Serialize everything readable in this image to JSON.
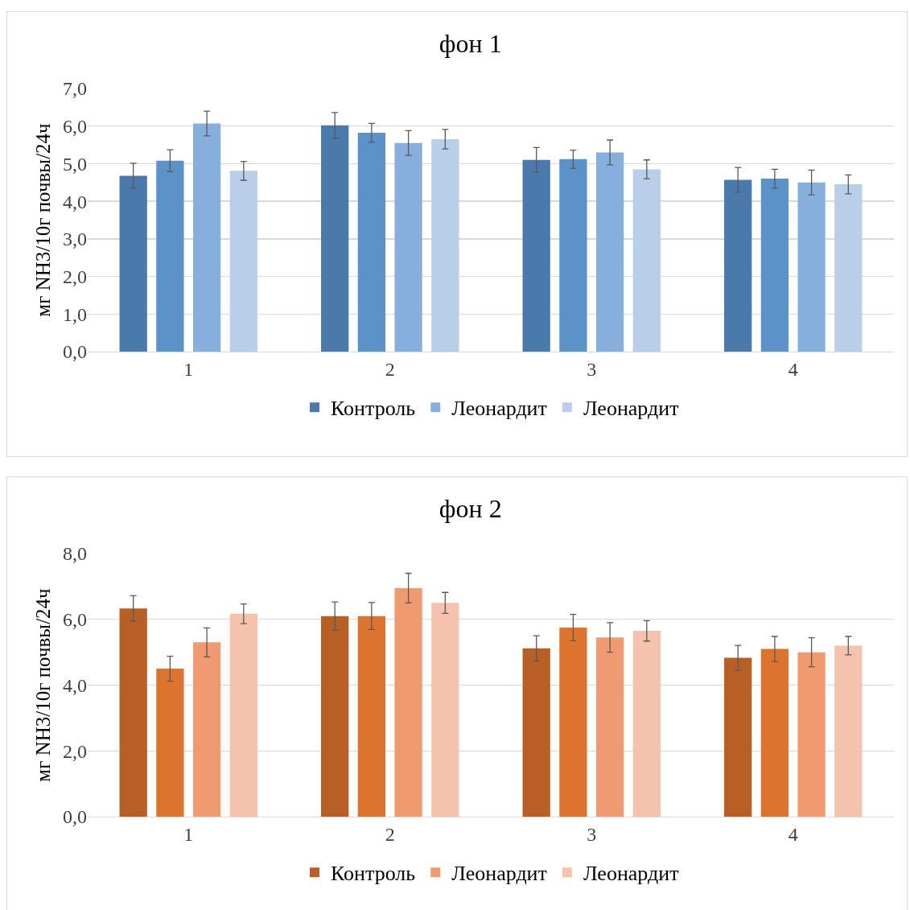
{
  "chart_data": [
    {
      "type": "bar",
      "title": "фон 1",
      "ylabel": "мг NH3/10г почвы/24ч",
      "categories": [
        "1",
        "2",
        "3",
        "4"
      ],
      "ylim": [
        0,
        7
      ],
      "yticks": [
        {
          "value": 0,
          "label": "0,0"
        },
        {
          "value": 1,
          "label": "1,0"
        },
        {
          "value": 2,
          "label": "2,0"
        },
        {
          "value": 3,
          "label": "3,0"
        },
        {
          "value": 4,
          "label": "4,0"
        },
        {
          "value": 5,
          "label": "5,0"
        },
        {
          "value": 6,
          "label": "6,0"
        },
        {
          "value": 7,
          "label": "7,0"
        }
      ],
      "grid": "y",
      "legend": "bottom",
      "series": [
        {
          "name": "Контроль",
          "color": "#4a7aab",
          "values": [
            4.68,
            6.02,
            5.1,
            4.57
          ],
          "errors": [
            0.33,
            0.34,
            0.33,
            0.33
          ]
        },
        {
          "color": "#5b93c9",
          "values": [
            5.08,
            5.82,
            5.12,
            4.6
          ],
          "errors": [
            0.29,
            0.25,
            0.24,
            0.25
          ]
        },
        {
          "name": "Леонардит",
          "color": "#86afdd",
          "values": [
            6.07,
            5.55,
            5.3,
            4.5
          ],
          "errors": [
            0.33,
            0.33,
            0.33,
            0.33
          ]
        },
        {
          "name": "Леонардит",
          "color": "#b9cfe9",
          "values": [
            4.81,
            5.65,
            4.85,
            4.45
          ],
          "errors": [
            0.25,
            0.26,
            0.25,
            0.25
          ]
        }
      ]
    },
    {
      "type": "bar",
      "title": "фон 2",
      "ylabel": "мг NH3/10г почвы/24ч",
      "categories": [
        "1",
        "2",
        "3",
        "4"
      ],
      "ylim": [
        0,
        8
      ],
      "yticks": [
        {
          "value": 0,
          "label": "0,0"
        },
        {
          "value": 2,
          "label": "2,0"
        },
        {
          "value": 4,
          "label": "4,0"
        },
        {
          "value": 6,
          "label": "6,0"
        },
        {
          "value": 8,
          "label": "8,0"
        }
      ],
      "grid": "y",
      "legend": "bottom",
      "series": [
        {
          "name": "Контроль",
          "color": "#b85f25",
          "values": [
            6.33,
            6.1,
            5.12,
            4.83
          ],
          "errors": [
            0.39,
            0.43,
            0.38,
            0.38
          ]
        },
        {
          "color": "#dc7430",
          "values": [
            4.5,
            6.1,
            5.75,
            5.1
          ],
          "errors": [
            0.38,
            0.41,
            0.4,
            0.38
          ]
        },
        {
          "name": "Леонардит",
          "color": "#ef9a70",
          "values": [
            5.3,
            6.95,
            5.45,
            5.0
          ],
          "errors": [
            0.44,
            0.45,
            0.45,
            0.44
          ]
        },
        {
          "name": "Леонардит",
          "color": "#f4c2ad",
          "values": [
            6.17,
            6.5,
            5.65,
            5.2
          ],
          "errors": [
            0.3,
            0.32,
            0.31,
            0.28
          ]
        }
      ]
    }
  ]
}
